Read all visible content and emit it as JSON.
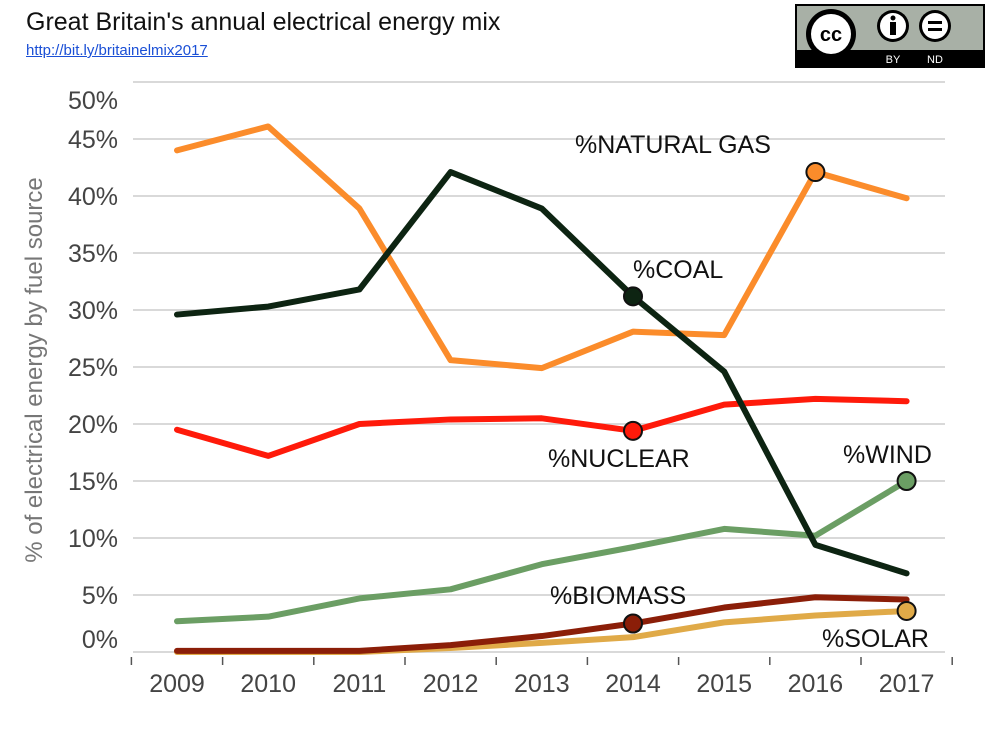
{
  "header": {
    "title": "Great Britain's annual electrical energy mix",
    "link": "http://bit.ly/britainelmix2017"
  },
  "license_badge": {
    "icons": [
      "cc-icon",
      "attribution-person-icon",
      "no-derivatives-equals-icon"
    ],
    "lettering": [
      "cc",
      "BY",
      "ND"
    ]
  },
  "chart_data": {
    "type": "line",
    "title": "Great Britain's annual electrical energy mix",
    "xlabel": "",
    "ylabel": "% of electrical energy by fuel source",
    "x": [
      "2009",
      "2010",
      "2011",
      "2012",
      "2013",
      "2014",
      "2015",
      "2016",
      "2017"
    ],
    "ylim": [
      0,
      50
    ],
    "yticks": [
      "0%",
      "5%",
      "10%",
      "15%",
      "20%",
      "25%",
      "30%",
      "35%",
      "40%",
      "45%",
      "50%"
    ],
    "grid": true,
    "series": [
      {
        "name": "%NATURAL GAS",
        "color": "#fb8c2b",
        "values": [
          44.0,
          46.1,
          38.9,
          25.6,
          24.9,
          28.1,
          27.8,
          42.1,
          39.8
        ],
        "marker_index": 7
      },
      {
        "name": "%COAL",
        "color": "#0d2412",
        "values": [
          29.6,
          30.3,
          31.8,
          42.1,
          38.9,
          31.2,
          24.6,
          9.4,
          6.9
        ],
        "marker_index": 5
      },
      {
        "name": "%NUCLEAR",
        "color": "#ff1a0a",
        "values": [
          19.5,
          17.2,
          20.0,
          20.4,
          20.5,
          19.4,
          21.7,
          22.2,
          22.0
        ],
        "marker_index": 5
      },
      {
        "name": "%WIND",
        "color": "#6b9e64",
        "values": [
          2.7,
          3.1,
          4.7,
          5.5,
          7.7,
          9.2,
          10.8,
          10.2,
          15.0
        ],
        "marker_index": 8
      },
      {
        "name": "%BIOMASS",
        "color": "#8b1e08",
        "values": [
          0.1,
          0.1,
          0.1,
          0.6,
          1.4,
          2.5,
          3.9,
          4.8,
          4.6
        ],
        "marker_index": 5
      },
      {
        "name": "%SOLAR",
        "color": "#e0aa48",
        "values": [
          0.0,
          0.0,
          0.0,
          0.35,
          0.8,
          1.3,
          2.6,
          3.2,
          3.6
        ],
        "marker_index": 8
      }
    ]
  }
}
